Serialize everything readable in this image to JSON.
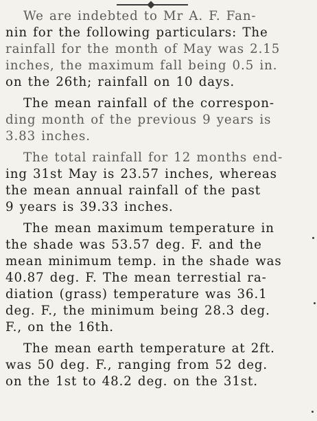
{
  "article": {
    "paragraphs": [
      {
        "lines": [
          "We are indebted to Mr A. F. Fan-",
          "nin for the following particulars: The",
          "rainfall for the month of May was 2.15",
          "inches, the maximum fall being 0.5 in.",
          "on the 26th; rainfall on 10 days."
        ]
      },
      {
        "lines": [
          "The mean rainfall of the correspon-",
          "ding month of the previous 9 years is",
          "3.83 inches."
        ]
      },
      {
        "lines": [
          "The total rainfall for 12 months end-",
          "ing 31st May is 23.57 inches, whereas",
          "the mean annual rainfall of the past",
          "9 years is 39.33 inches."
        ]
      },
      {
        "lines": [
          "The mean maximum temperature in",
          "the shade was 53.57 deg. F. and the",
          "mean minimum temp. in the shade was",
          "40.87 deg. F. The mean terrestial ra-",
          "diation (grass) temperature was 36.1",
          "deg. F., the minimum being 28.3 deg.",
          "F., on the 16th."
        ]
      },
      {
        "lines": [
          "The mean earth temperature at 2ft.",
          "was 50 deg. F., ranging from 52 deg.",
          "on the 1st to 48.2 deg. on the 31st."
        ]
      }
    ]
  }
}
